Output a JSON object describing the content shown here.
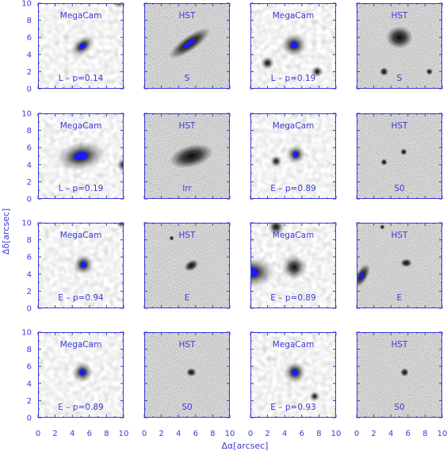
{
  "figure": {
    "xlabel": "Δα[arcsec]",
    "ylabel": "Δδ[arcsec]",
    "x_ticks": [
      "0",
      "2",
      "4",
      "6",
      "8",
      "10"
    ],
    "y_ticks": [
      "0",
      "2",
      "4",
      "6",
      "8",
      "10"
    ],
    "axis_color": "#3b3bd6",
    "source_color": "#1a1aff"
  },
  "panels": [
    {
      "row": 0,
      "col": 0,
      "instrument": "MegaCam",
      "class_label": "L – p=0.14",
      "kind": "megacam",
      "sources": [
        {
          "x": 5.2,
          "y": 5.0,
          "r": 1.0,
          "elong": 1.6,
          "ang": -40,
          "core": true
        },
        {
          "x": 9.5,
          "y": 10.2,
          "r": 0.8,
          "elong": 1,
          "ang": 0,
          "core": false
        }
      ]
    },
    {
      "row": 0,
      "col": 1,
      "instrument": "HST",
      "class_label": "S",
      "kind": "hst",
      "sources": [
        {
          "x": 5.3,
          "y": 5.3,
          "r": 0.9,
          "elong": 3.2,
          "ang": -35,
          "core": true
        }
      ]
    },
    {
      "row": 0,
      "col": 2,
      "instrument": "MegaCam",
      "class_label": "L – p=0.19",
      "kind": "megacam",
      "sources": [
        {
          "x": 5.1,
          "y": 5.1,
          "r": 1.4,
          "elong": 1.1,
          "ang": 0,
          "core": true
        },
        {
          "x": 2.0,
          "y": 3.0,
          "r": 0.8,
          "elong": 1,
          "ang": 0,
          "core": false
        },
        {
          "x": 7.8,
          "y": 2.0,
          "r": 0.7,
          "elong": 1,
          "ang": 0,
          "core": false
        }
      ]
    },
    {
      "row": 0,
      "col": 3,
      "instrument": "HST",
      "class_label": "S",
      "kind": "hst",
      "sources": [
        {
          "x": 5.0,
          "y": 6.0,
          "r": 1.3,
          "elong": 1.2,
          "ang": 0,
          "core": false
        },
        {
          "x": 3.2,
          "y": 2.0,
          "r": 0.5,
          "elong": 1,
          "ang": 0,
          "core": false
        },
        {
          "x": 8.5,
          "y": 2.0,
          "r": 0.4,
          "elong": 1,
          "ang": 0,
          "core": false
        }
      ]
    },
    {
      "row": 1,
      "col": 0,
      "instrument": "MegaCam",
      "class_label": "L – p=0.19",
      "kind": "megacam",
      "sources": [
        {
          "x": 5.0,
          "y": 5.0,
          "r": 1.7,
          "elong": 1.7,
          "ang": -10,
          "core": true
        },
        {
          "x": 10.0,
          "y": 4.0,
          "r": 0.8,
          "elong": 1,
          "ang": 0,
          "core": false
        }
      ]
    },
    {
      "row": 1,
      "col": 1,
      "instrument": "HST",
      "class_label": "Irr",
      "kind": "hst",
      "sources": [
        {
          "x": 5.5,
          "y": 5.0,
          "r": 1.3,
          "elong": 2.0,
          "ang": -15,
          "core": false
        }
      ]
    },
    {
      "row": 1,
      "col": 2,
      "instrument": "MegaCam",
      "class_label": "E – p=0.89",
      "kind": "megacam",
      "sources": [
        {
          "x": 5.3,
          "y": 5.2,
          "r": 1.1,
          "elong": 1.0,
          "ang": 0,
          "core": true
        },
        {
          "x": 3.0,
          "y": 4.4,
          "r": 0.7,
          "elong": 1,
          "ang": 0,
          "core": false
        }
      ]
    },
    {
      "row": 1,
      "col": 3,
      "instrument": "HST",
      "class_label": "S0",
      "kind": "hst",
      "sources": [
        {
          "x": 5.5,
          "y": 5.5,
          "r": 0.4,
          "elong": 1,
          "ang": 0,
          "core": false
        },
        {
          "x": 3.2,
          "y": 4.3,
          "r": 0.4,
          "elong": 1,
          "ang": 0,
          "core": false
        }
      ]
    },
    {
      "row": 2,
      "col": 0,
      "instrument": "MegaCam",
      "class_label": "E – p=0.94",
      "kind": "megacam",
      "sources": [
        {
          "x": 5.3,
          "y": 5.1,
          "r": 1.2,
          "elong": 1.0,
          "ang": 0,
          "core": true
        },
        {
          "x": 9.7,
          "y": 10.0,
          "r": 0.6,
          "elong": 1,
          "ang": 0,
          "core": false
        }
      ]
    },
    {
      "row": 2,
      "col": 1,
      "instrument": "HST",
      "class_label": "E",
      "kind": "hst",
      "sources": [
        {
          "x": 5.5,
          "y": 5.0,
          "r": 0.6,
          "elong": 1.5,
          "ang": -30,
          "core": false
        },
        {
          "x": 3.2,
          "y": 8.2,
          "r": 0.3,
          "elong": 1,
          "ang": 0,
          "core": false
        }
      ]
    },
    {
      "row": 2,
      "col": 2,
      "instrument": "MegaCam",
      "class_label": "E – p=0.89",
      "kind": "megacam",
      "sources": [
        {
          "x": 5.1,
          "y": 4.8,
          "r": 1.5,
          "elong": 1.0,
          "ang": 0,
          "core": false
        },
        {
          "x": 0.2,
          "y": 4.2,
          "r": 1.8,
          "elong": 1.5,
          "ang": 0,
          "core": true
        },
        {
          "x": 3.0,
          "y": 9.5,
          "r": 1.0,
          "elong": 1,
          "ang": 0,
          "core": false
        }
      ]
    },
    {
      "row": 2,
      "col": 3,
      "instrument": "HST",
      "class_label": "E",
      "kind": "hst",
      "sources": [
        {
          "x": 5.8,
          "y": 5.3,
          "r": 0.5,
          "elong": 1.4,
          "ang": 0,
          "core": false
        },
        {
          "x": 0.6,
          "y": 3.8,
          "r": 0.7,
          "elong": 2.2,
          "ang": -60,
          "core": true
        },
        {
          "x": 3.0,
          "y": 9.5,
          "r": 0.3,
          "elong": 1,
          "ang": 0,
          "core": false
        }
      ]
    },
    {
      "row": 3,
      "col": 0,
      "instrument": "MegaCam",
      "class_label": "E – p=0.89",
      "kind": "megacam",
      "sources": [
        {
          "x": 5.2,
          "y": 5.3,
          "r": 1.2,
          "elong": 1.0,
          "ang": 0,
          "core": true
        }
      ]
    },
    {
      "row": 3,
      "col": 1,
      "instrument": "HST",
      "class_label": "S0",
      "kind": "hst",
      "sources": [
        {
          "x": 5.5,
          "y": 5.3,
          "r": 0.5,
          "elong": 1.2,
          "ang": 0,
          "core": false
        }
      ]
    },
    {
      "row": 3,
      "col": 2,
      "instrument": "MegaCam",
      "class_label": "E – p=0.93",
      "kind": "megacam",
      "sources": [
        {
          "x": 5.2,
          "y": 5.3,
          "r": 1.3,
          "elong": 1.0,
          "ang": 0,
          "core": true
        },
        {
          "x": 7.5,
          "y": 2.5,
          "r": 0.6,
          "elong": 1,
          "ang": 0,
          "core": false
        }
      ]
    },
    {
      "row": 3,
      "col": 3,
      "instrument": "HST",
      "class_label": "S0",
      "kind": "hst",
      "sources": [
        {
          "x": 5.6,
          "y": 5.3,
          "r": 0.5,
          "elong": 1.0,
          "ang": 0,
          "core": false
        }
      ]
    }
  ]
}
